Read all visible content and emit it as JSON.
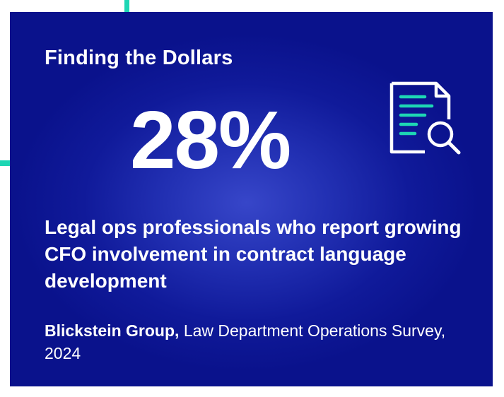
{
  "headline": "Finding the Dollars",
  "stat": {
    "value": "28%"
  },
  "description": "Legal ops professionals who report growing CFO involvement in contract language development",
  "source": {
    "organization": "Blickstein Group,",
    "title": " Law Department Operations Survey, 2024"
  },
  "icons": {
    "document": "document-search-icon"
  },
  "colors": {
    "card_background": "#101a9a",
    "accent": "#1ed6b4",
    "text": "#ffffff"
  }
}
